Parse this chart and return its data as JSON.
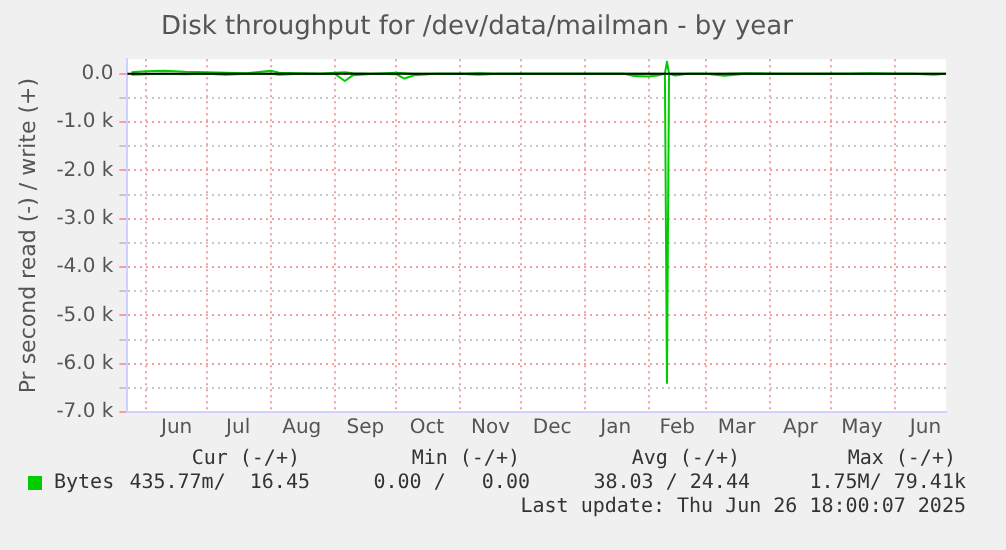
{
  "chart_data": {
    "type": "line",
    "title": "Disk throughput for /dev/data/mailman - by year",
    "ylabel": "Pr second read (-) / write (+)",
    "x": [
      "2024-05-25",
      "2024-06-01",
      "2024-06-10",
      "2024-06-20",
      "2024-07-01",
      "2024-07-10",
      "2024-07-20",
      "2024-08-01",
      "2024-08-05",
      "2024-08-15",
      "2024-08-25",
      "2024-09-01",
      "2024-09-06",
      "2024-09-10",
      "2024-09-20",
      "2024-10-01",
      "2024-10-05",
      "2024-10-10",
      "2024-10-20",
      "2024-11-01",
      "2024-11-10",
      "2024-11-20",
      "2024-12-01",
      "2024-12-10",
      "2024-12-20",
      "2025-01-01",
      "2025-01-10",
      "2025-01-20",
      "2025-01-25",
      "2025-02-01",
      "2025-02-06",
      "2025-02-09",
      "2025-02-10",
      "2025-02-11",
      "2025-02-14",
      "2025-02-20",
      "2025-03-01",
      "2025-03-10",
      "2025-03-20",
      "2025-04-01",
      "2025-04-10",
      "2025-04-20",
      "2025-05-01",
      "2025-05-10",
      "2025-05-20",
      "2025-06-01",
      "2025-06-10",
      "2025-06-20",
      "2025-06-26"
    ],
    "series": [
      {
        "name": "Bytes",
        "color": "#00cc00",
        "values": [
          -20,
          -10,
          0,
          -10,
          0,
          -20,
          0,
          0,
          -20,
          0,
          0,
          0,
          -150,
          -30,
          0,
          -10,
          -100,
          -30,
          0,
          0,
          -20,
          0,
          0,
          0,
          0,
          0,
          0,
          0,
          -50,
          -60,
          -30,
          0,
          -6400,
          0,
          -40,
          0,
          0,
          -40,
          0,
          0,
          0,
          0,
          0,
          0,
          0,
          0,
          0,
          -20,
          0
        ]
      },
      {
        "color": "#00cc00",
        "values": [
          30,
          50,
          60,
          40,
          30,
          20,
          10,
          60,
          20,
          10,
          0,
          20,
          30,
          10,
          0,
          20,
          10,
          0,
          0,
          0,
          10,
          0,
          0,
          0,
          0,
          0,
          0,
          0,
          0,
          0,
          0,
          0,
          250,
          0,
          0,
          0,
          0,
          0,
          10,
          0,
          0,
          0,
          0,
          0,
          10,
          0,
          0,
          0,
          0
        ]
      }
    ],
    "xlim": [
      "2024-05-23",
      "2025-06-26"
    ],
    "xticks": [
      {
        "value": "2024-06-01",
        "label": null
      },
      {
        "value": "2024-06-16",
        "label": "Jun"
      },
      {
        "value": "2024-07-01",
        "label": null
      },
      {
        "value": "2024-07-16",
        "label": "Jul"
      },
      {
        "value": "2024-08-01",
        "label": null
      },
      {
        "value": "2024-08-16",
        "label": "Aug"
      },
      {
        "value": "2024-09-01",
        "label": null
      },
      {
        "value": "2024-09-16",
        "label": "Sep"
      },
      {
        "value": "2024-10-01",
        "label": null
      },
      {
        "value": "2024-10-16",
        "label": "Oct"
      },
      {
        "value": "2024-11-01",
        "label": null
      },
      {
        "value": "2024-11-16",
        "label": "Nov"
      },
      {
        "value": "2024-12-01",
        "label": null
      },
      {
        "value": "2024-12-16",
        "label": "Dec"
      },
      {
        "value": "2025-01-01",
        "label": null
      },
      {
        "value": "2025-01-16",
        "label": "Jan"
      },
      {
        "value": "2025-02-01",
        "label": null
      },
      {
        "value": "2025-02-15",
        "label": "Feb"
      },
      {
        "value": "2025-03-01",
        "label": null
      },
      {
        "value": "2025-03-16",
        "label": "Mar"
      },
      {
        "value": "2025-04-01",
        "label": null
      },
      {
        "value": "2025-04-16",
        "label": "Apr"
      },
      {
        "value": "2025-05-01",
        "label": null
      },
      {
        "value": "2025-05-16",
        "label": "May"
      },
      {
        "value": "2025-06-01",
        "label": null
      },
      {
        "value": "2025-06-16",
        "label": "Jun"
      }
    ],
    "ylim": [
      -7000,
      300
    ],
    "yticks": [
      {
        "value": 0,
        "label": "0.0"
      },
      {
        "value": -500,
        "label": null
      },
      {
        "value": -1000,
        "label": "-1.0 k"
      },
      {
        "value": -1500,
        "label": null
      },
      {
        "value": -2000,
        "label": "-2.0 k"
      },
      {
        "value": -2500,
        "label": null
      },
      {
        "value": -3000,
        "label": "-3.0 k"
      },
      {
        "value": -3500,
        "label": null
      },
      {
        "value": -4000,
        "label": "-4.0 k"
      },
      {
        "value": -4500,
        "label": null
      },
      {
        "value": -5000,
        "label": "-5.0 k"
      },
      {
        "value": -5500,
        "label": null
      },
      {
        "value": -6000,
        "label": "-6.0 k"
      },
      {
        "value": -6500,
        "label": null
      },
      {
        "value": -7000,
        "label": "-7.0 k"
      }
    ],
    "ref_lines": [
      {
        "axis": "y",
        "value": 0,
        "color": "#000000"
      }
    ],
    "grid": true,
    "legend": "bottom left",
    "marker": "none",
    "line_style": "solid",
    "annotations": [
      "Cur (-/+)",
      "Min (-/+)",
      "Avg (-/+)",
      "Max (-/+)",
      "435.77m/  16.45",
      "0.00 /   0.00",
      "38.03 / 24.44",
      "1.75M/ 79.41k",
      "Last update: Thu Jun 26 18:00:07 2025"
    ]
  }
}
